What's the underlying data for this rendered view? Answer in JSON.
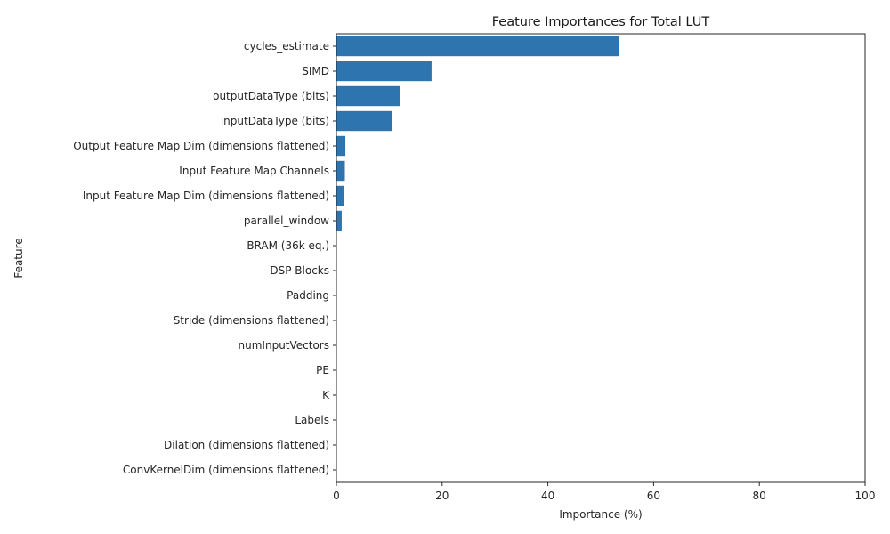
{
  "chart_data": {
    "type": "bar",
    "orientation": "horizontal",
    "title": "Feature Importances for Total LUT",
    "xlabel": "Importance (%)",
    "ylabel": "Feature",
    "xlim": [
      0,
      100
    ],
    "xticks": [
      0,
      20,
      40,
      60,
      80,
      100
    ],
    "grid": false,
    "bar_color": "#2e75b0",
    "categories": [
      "cycles_estimate",
      "SIMD",
      "outputDataType (bits)",
      "inputDataType (bits)",
      "Output Feature Map Dim (dimensions flattened)",
      "Input Feature Map Channels",
      "Input Feature Map Dim (dimensions flattened)",
      "parallel_window",
      "BRAM (36k eq.)",
      "DSP Blocks",
      "Padding",
      "Stride (dimensions flattened)",
      "numInputVectors",
      "PE",
      "K",
      "Labels",
      "Dilation (dimensions flattened)",
      "ConvKernelDim (dimensions flattened)"
    ],
    "values": [
      53.5,
      18.0,
      12.1,
      10.6,
      1.7,
      1.6,
      1.5,
      1.0,
      0,
      0,
      0,
      0,
      0,
      0,
      0,
      0,
      0,
      0
    ]
  }
}
